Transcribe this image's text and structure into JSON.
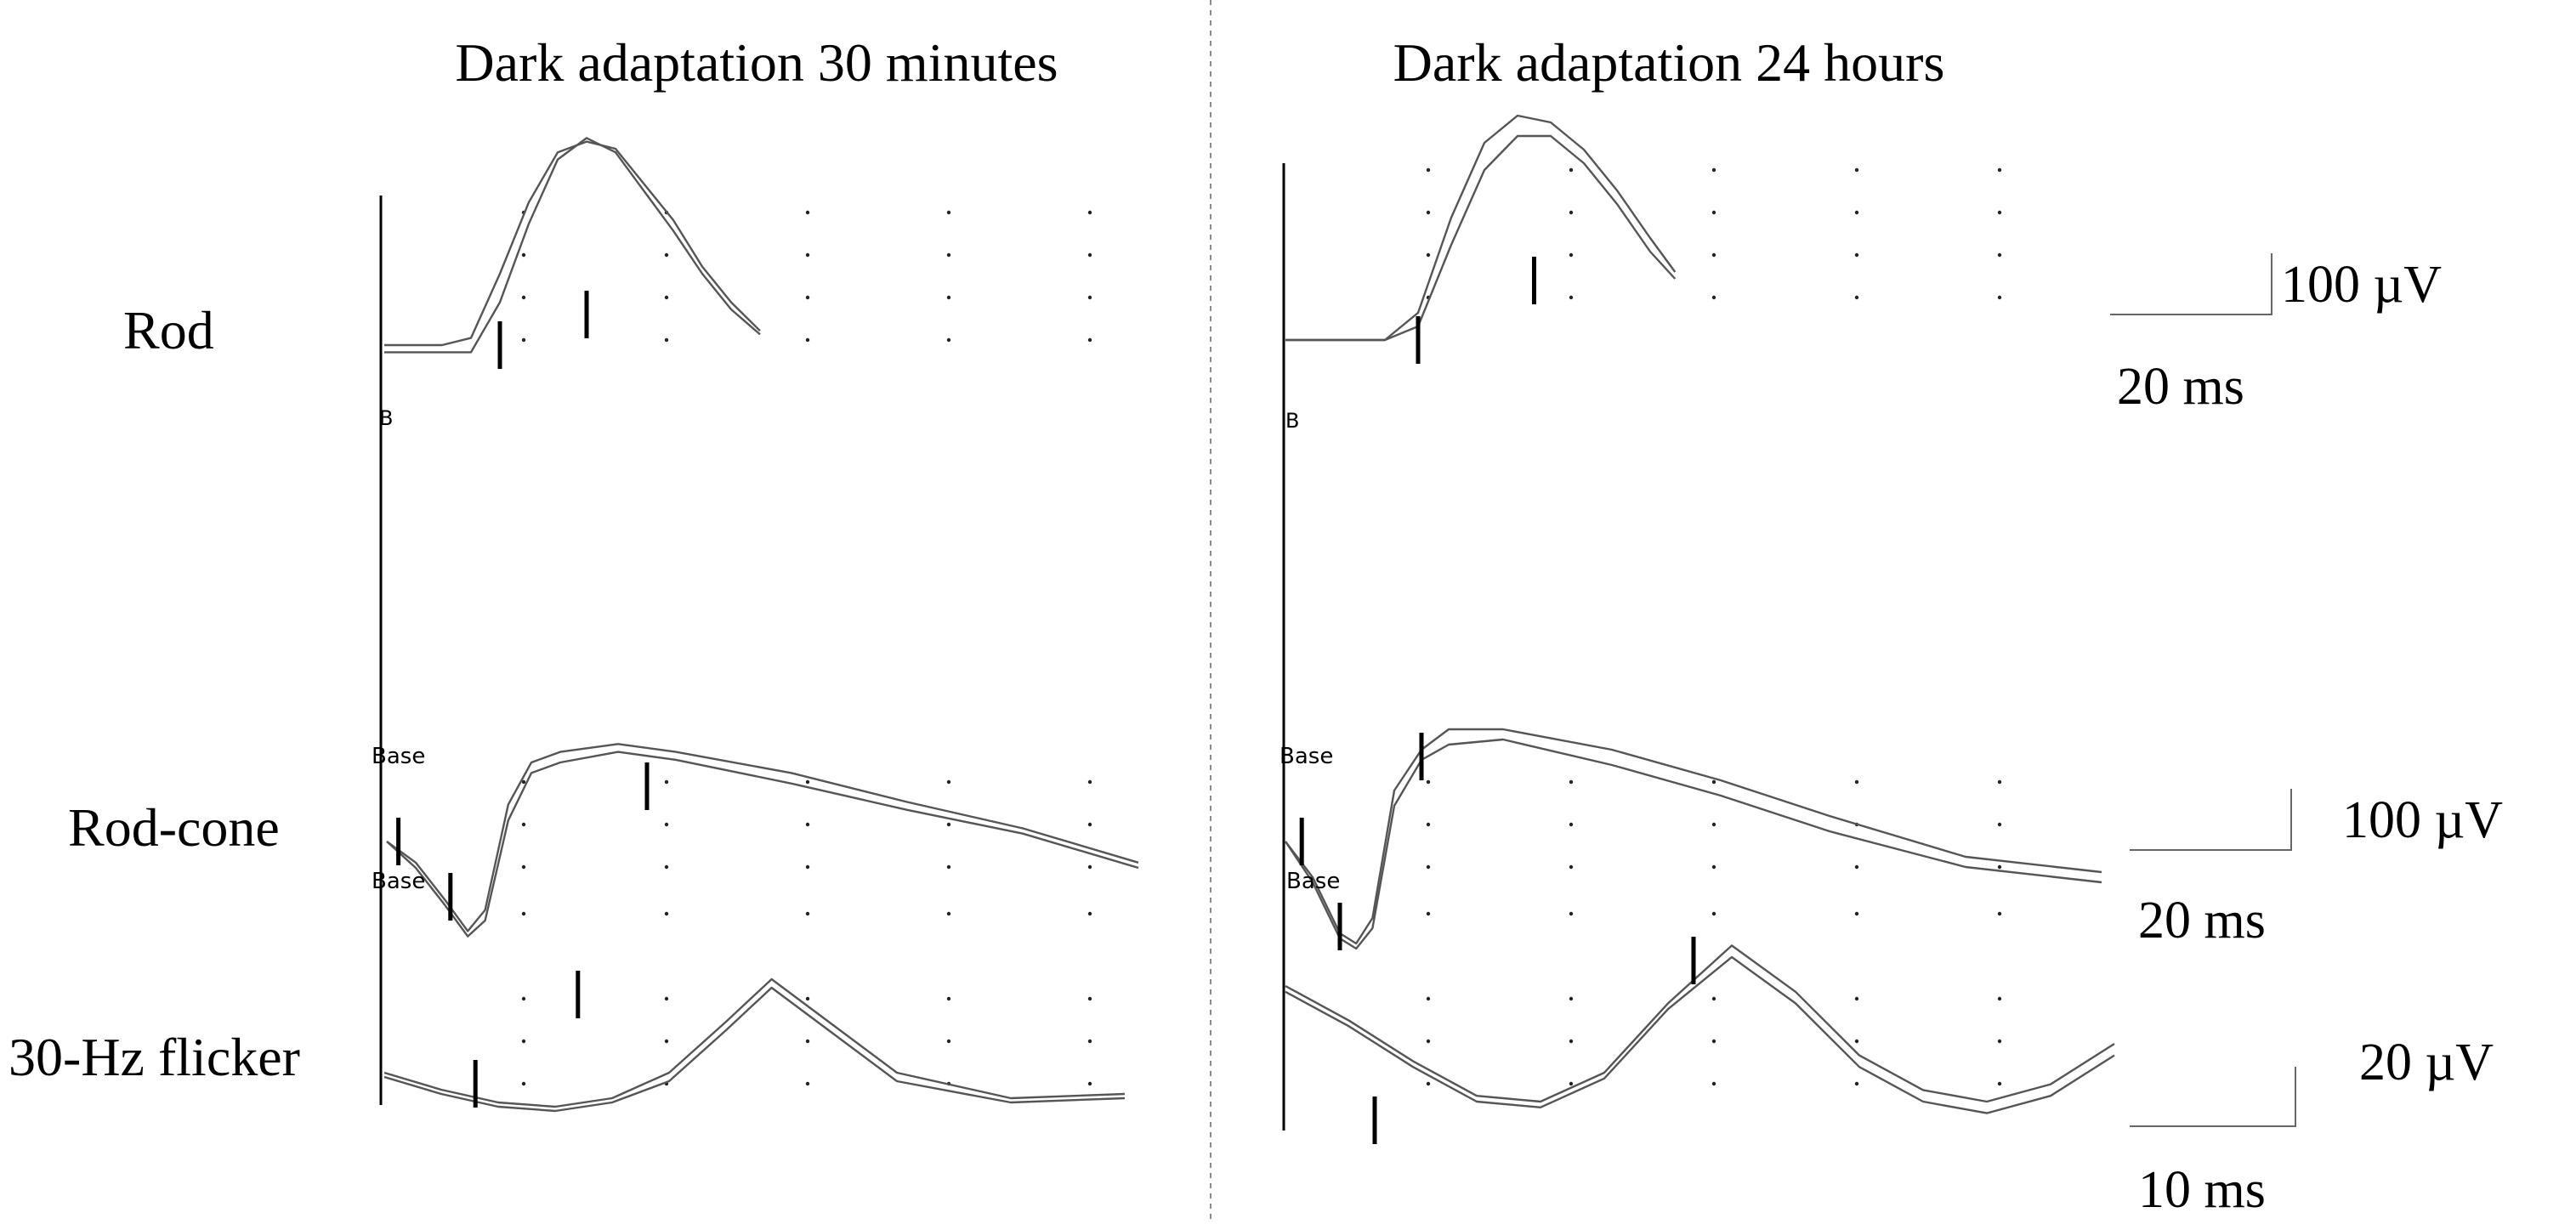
{
  "panels": {
    "left_title": "Dark adaptation 30 minutes",
    "right_title": "Dark adaptation 24 hours"
  },
  "row_labels": {
    "rod": "Rod",
    "rod_cone": "Rod-cone",
    "flicker": "30-Hz flicker"
  },
  "scale_bars": [
    {
      "amplitude": "100 µV",
      "time": "20 ms"
    },
    {
      "amplitude": "100 µV",
      "time": "20 ms"
    },
    {
      "amplitude": "20 µV",
      "time": "10 ms"
    }
  ],
  "marker_labels": {
    "base": "Base",
    "b": "B"
  },
  "colors": {
    "trace": "#555555",
    "axis": "#000000",
    "divider": "#888888"
  },
  "chart_data": [
    {
      "type": "line",
      "title": "Dark adaptation 30 minutes",
      "rows": [
        {
          "label": "Rod",
          "series": [
            {
              "values_ms_uV": [
                [
                  0,
                  0
                ],
                [
                  40,
                  0
                ],
                [
                  60,
                  2
                ],
                [
                  80,
                  20
                ],
                [
                  100,
                  40
                ],
                [
                  120,
                  54
                ],
                [
                  140,
                  57
                ],
                [
                  160,
                  55
                ],
                [
                  180,
                  45
                ],
                [
                  200,
                  35
                ],
                [
                  220,
                  22
                ],
                [
                  240,
                  12
                ],
                [
                  260,
                  4
                ]
              ]
            },
            {
              "values_ms_uV": [
                [
                  0,
                  -2
                ],
                [
                  40,
                  -2
                ],
                [
                  60,
                  -2
                ],
                [
                  80,
                  12
                ],
                [
                  100,
                  34
                ],
                [
                  120,
                  52
                ],
                [
                  140,
                  58
                ],
                [
                  160,
                  54
                ],
                [
                  180,
                  43
                ],
                [
                  200,
                  32
                ],
                [
                  220,
                  20
                ],
                [
                  240,
                  10
                ],
                [
                  260,
                  3
                ]
              ]
            }
          ]
        },
        {
          "label": "Rod-cone",
          "series": [
            {
              "values_ms_uV": [
                [
                  0,
                  0
                ],
                [
                  10,
                  -8
                ],
                [
                  20,
                  -22
                ],
                [
                  28,
                  -34
                ],
                [
                  34,
                  -26
                ],
                [
                  42,
                  14
                ],
                [
                  50,
                  30
                ],
                [
                  60,
                  34
                ],
                [
                  80,
                  37
                ],
                [
                  100,
                  34
                ],
                [
                  140,
                  26
                ],
                [
                  180,
                  15
                ],
                [
                  220,
                  5
                ],
                [
                  260,
                  -8
                ]
              ]
            },
            {
              "values_ms_uV": [
                [
                  0,
                  0
                ],
                [
                  10,
                  -10
                ],
                [
                  20,
                  -24
                ],
                [
                  28,
                  -36
                ],
                [
                  34,
                  -30
                ],
                [
                  42,
                  8
                ],
                [
                  50,
                  26
                ],
                [
                  60,
                  30
                ],
                [
                  80,
                  34
                ],
                [
                  100,
                  31
                ],
                [
                  140,
                  22
                ],
                [
                  180,
                  12
                ],
                [
                  220,
                  3
                ],
                [
                  260,
                  -10
                ]
              ]
            }
          ]
        },
        {
          "label": "30-Hz flicker",
          "series": [
            {
              "values_ms_uV": [
                [
                  0,
                  0
                ],
                [
                  10,
                  -4
                ],
                [
                  20,
                  -7
                ],
                [
                  30,
                  -8
                ],
                [
                  40,
                  -6
                ],
                [
                  50,
                  0
                ],
                [
                  60,
                  12
                ],
                [
                  68,
                  22
                ],
                [
                  78,
                  12
                ],
                [
                  90,
                  0
                ],
                [
                  110,
                  -6
                ],
                [
                  130,
                  -5
                ]
              ]
            },
            {
              "values_ms_uV": [
                [
                  0,
                  -1
                ],
                [
                  10,
                  -5
                ],
                [
                  20,
                  -8
                ],
                [
                  30,
                  -9
                ],
                [
                  40,
                  -7
                ],
                [
                  50,
                  -2
                ],
                [
                  60,
                  10
                ],
                [
                  68,
                  20
                ],
                [
                  78,
                  10
                ],
                [
                  90,
                  -2
                ],
                [
                  110,
                  -7
                ],
                [
                  130,
                  -6
                ]
              ]
            }
          ]
        }
      ]
    },
    {
      "type": "line",
      "title": "Dark adaptation 24 hours",
      "rows": [
        {
          "label": "Rod",
          "series": [
            {
              "values_ms_uV": [
                [
                  0,
                  0
                ],
                [
                  60,
                  0
                ],
                [
                  80,
                  8
                ],
                [
                  100,
                  36
                ],
                [
                  120,
                  58
                ],
                [
                  140,
                  66
                ],
                [
                  160,
                  64
                ],
                [
                  180,
                  56
                ],
                [
                  200,
                  44
                ],
                [
                  220,
                  30
                ],
                [
                  235,
                  20
                ]
              ]
            },
            {
              "values_ms_uV": [
                [
                  0,
                  0
                ],
                [
                  60,
                  0
                ],
                [
                  80,
                  4
                ],
                [
                  100,
                  28
                ],
                [
                  120,
                  50
                ],
                [
                  140,
                  60
                ],
                [
                  160,
                  60
                ],
                [
                  180,
                  52
                ],
                [
                  200,
                  40
                ],
                [
                  220,
                  26
                ],
                [
                  235,
                  18
                ]
              ]
            }
          ]
        },
        {
          "label": "Rod-cone",
          "series": [
            {
              "values_ms_uV": [
                [
                  0,
                  0
                ],
                [
                  10,
                  -14
                ],
                [
                  20,
                  -36
                ],
                [
                  26,
                  -40
                ],
                [
                  32,
                  -30
                ],
                [
                  40,
                  20
                ],
                [
                  50,
                  36
                ],
                [
                  60,
                  44
                ],
                [
                  80,
                  44
                ],
                [
                  120,
                  36
                ],
                [
                  160,
                  24
                ],
                [
                  200,
                  10
                ],
                [
                  250,
                  -6
                ],
                [
                  300,
                  -12
                ]
              ]
            },
            {
              "values_ms_uV": [
                [
                  0,
                  0
                ],
                [
                  10,
                  -16
                ],
                [
                  20,
                  -38
                ],
                [
                  26,
                  -42
                ],
                [
                  32,
                  -34
                ],
                [
                  40,
                  14
                ],
                [
                  50,
                  32
                ],
                [
                  60,
                  38
                ],
                [
                  80,
                  40
                ],
                [
                  120,
                  30
                ],
                [
                  160,
                  18
                ],
                [
                  200,
                  4
                ],
                [
                  250,
                  -10
                ],
                [
                  300,
                  -16
                ]
              ]
            }
          ]
        },
        {
          "label": "30-Hz flicker",
          "series": [
            {
              "values_ms_uV": [
                [
                  0,
                  30
                ],
                [
                  10,
                  18
                ],
                [
                  20,
                  4
                ],
                [
                  30,
                  -8
                ],
                [
                  40,
                  -10
                ],
                [
                  50,
                  0
                ],
                [
                  60,
                  24
                ],
                [
                  70,
                  44
                ],
                [
                  80,
                  28
                ],
                [
                  90,
                  6
                ],
                [
                  100,
                  -6
                ],
                [
                  110,
                  -10
                ],
                [
                  120,
                  -4
                ],
                [
                  130,
                  10
                ]
              ]
            },
            {
              "values_ms_uV": [
                [
                  0,
                  28
                ],
                [
                  10,
                  16
                ],
                [
                  20,
                  2
                ],
                [
                  30,
                  -10
                ],
                [
                  40,
                  -12
                ],
                [
                  50,
                  -2
                ],
                [
                  60,
                  22
                ],
                [
                  70,
                  40
                ],
                [
                  80,
                  24
                ],
                [
                  90,
                  2
                ],
                [
                  100,
                  -10
                ],
                [
                  110,
                  -14
                ],
                [
                  120,
                  -8
                ],
                [
                  130,
                  6
                ]
              ]
            }
          ]
        }
      ]
    }
  ]
}
